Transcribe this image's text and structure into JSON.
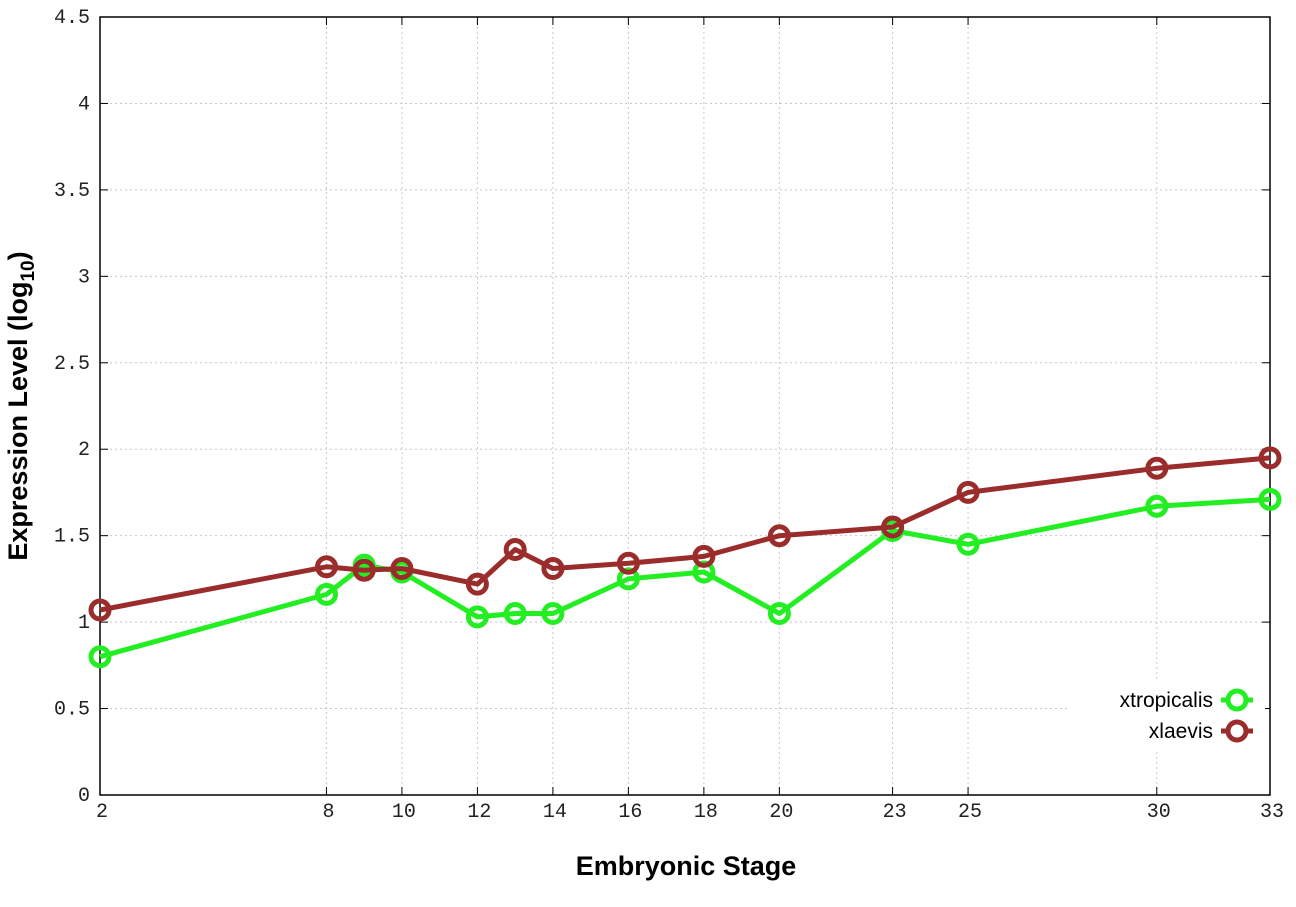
{
  "chart_data": {
    "type": "line",
    "title": "",
    "xlabel": "Embryonic Stage",
    "ylabel_main": "Expression Level (log",
    "ylabel_sub": "10",
    "ylabel_close": ")",
    "x_scale": "linear",
    "xlim": [
      2,
      33
    ],
    "ylim": [
      0,
      4.5
    ],
    "grid": true,
    "legend_position": "bottom-right",
    "x_ticks": [
      2,
      8,
      10,
      12,
      14,
      16,
      18,
      20,
      23,
      25,
      30,
      33
    ],
    "x_tick_labels": [
      "2",
      "8",
      "10",
      "12",
      "14",
      "16",
      "18",
      "20",
      "23",
      "25",
      "30",
      "33"
    ],
    "y_ticks": [
      0,
      0.5,
      1,
      1.5,
      2,
      2.5,
      3,
      3.5,
      4,
      4.5
    ],
    "y_tick_labels": [
      "0",
      "0.5",
      "1",
      "1.5",
      "2",
      "2.5",
      "3",
      "3.5",
      "4",
      "4.5"
    ],
    "series": [
      {
        "name": "xtropicalis",
        "color": "#22ee22",
        "x": [
          2,
          8,
          9,
          10,
          12,
          13,
          14,
          16,
          18,
          20,
          23,
          25,
          30,
          33
        ],
        "y": [
          0.8,
          1.16,
          1.33,
          1.29,
          1.03,
          1.05,
          1.05,
          1.25,
          1.29,
          1.05,
          1.53,
          1.45,
          1.67,
          1.71
        ]
      },
      {
        "name": "xlaevis",
        "color": "#9b2c2c",
        "x": [
          2,
          8,
          9,
          10,
          12,
          13,
          14,
          16,
          18,
          20,
          23,
          25,
          30,
          33
        ],
        "y": [
          1.07,
          1.32,
          1.3,
          1.31,
          1.22,
          1.42,
          1.31,
          1.34,
          1.38,
          1.5,
          1.55,
          1.75,
          1.89,
          1.95
        ]
      }
    ]
  }
}
